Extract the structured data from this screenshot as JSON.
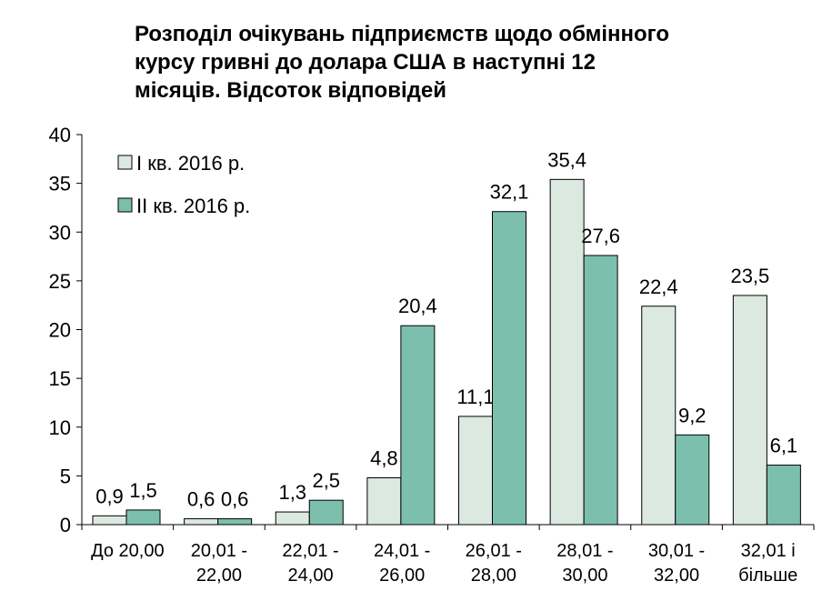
{
  "chart_data": {
    "type": "bar",
    "title_lines": [
      "Розподіл очікувань підприємств щодо обмінного",
      "курсу гривні до долара США в наступні 12",
      "місяців. Відсоток відповідей"
    ],
    "categories": [
      [
        "До 20,00"
      ],
      [
        "20,01 -",
        "22,00"
      ],
      [
        "22,01 -",
        "24,00"
      ],
      [
        "24,01 -",
        "26,00"
      ],
      [
        "26,01 -",
        "28,00"
      ],
      [
        "28,01 -",
        "30,00"
      ],
      [
        "30,01 -",
        "32,00"
      ],
      [
        "32,01 і",
        "більше"
      ]
    ],
    "series": [
      {
        "name": "I кв. 2016 р.",
        "color": "#dbe9e1",
        "values": [
          0.9,
          0.6,
          1.3,
          4.8,
          11.1,
          35.4,
          22.4,
          23.5
        ],
        "labels": [
          "0,9",
          "0,6",
          "1,3",
          "4,8",
          "11,1",
          "35,4",
          "22,4",
          "23,5"
        ]
      },
      {
        "name": "II кв. 2016 р.",
        "color": "#7cbfad",
        "values": [
          1.5,
          0.6,
          2.5,
          20.4,
          32.1,
          27.6,
          9.2,
          6.1
        ],
        "labels": [
          "1,5",
          "0,6",
          "2,5",
          "20,4",
          "32,1",
          "27,6",
          "9,2",
          "6,1"
        ]
      }
    ],
    "ylim": [
      0,
      40
    ],
    "yticks": [
      0,
      5,
      10,
      15,
      20,
      25,
      30,
      35,
      40
    ],
    "xlabel": "",
    "ylabel": "",
    "grid": false,
    "legend": "top-left"
  }
}
